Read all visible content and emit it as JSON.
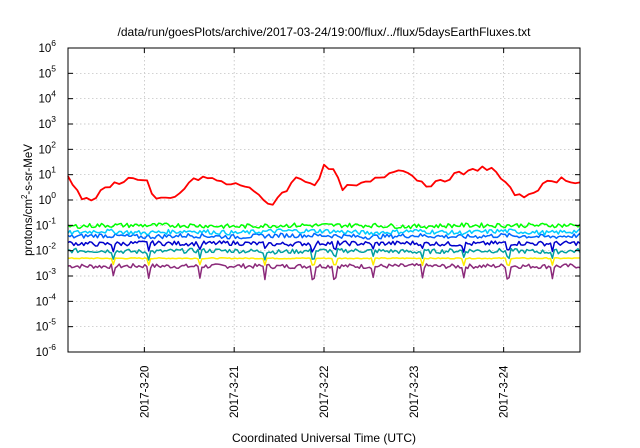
{
  "chart_data": {
    "type": "line",
    "title": "/data/run/goesPlots/archive/2017-03-24/19:00/flux/../flux/5daysEarthFluxes.txt",
    "xlabel": "Coordinated Universal Time (UTC)",
    "ylabel": {
      "prefix": "protons/cm",
      "sup": "2",
      "suffix": "-s-sr-MeV"
    },
    "yscale": "log",
    "ylim_exp": [
      -6,
      6
    ],
    "yticks": [
      {
        "base": "10",
        "exp": "6"
      },
      {
        "base": "10",
        "exp": "5"
      },
      {
        "base": "10",
        "exp": "4"
      },
      {
        "base": "10",
        "exp": "3"
      },
      {
        "base": "10",
        "exp": "2"
      },
      {
        "base": "10",
        "exp": "1"
      },
      {
        "base": "10",
        "exp": "0"
      },
      {
        "base": "10",
        "exp": "-1"
      },
      {
        "base": "10",
        "exp": "-2"
      },
      {
        "base": "10",
        "exp": "-3"
      },
      {
        "base": "10",
        "exp": "-4"
      },
      {
        "base": "10",
        "exp": "-5"
      },
      {
        "base": "10",
        "exp": "-6"
      }
    ],
    "xlim_days": [
      19.15,
      24.85
    ],
    "xticks": [
      {
        "label": "2017-3-20",
        "day": 20
      },
      {
        "label": "2017-3-21",
        "day": 21
      },
      {
        "label": "2017-3-22",
        "day": 22
      },
      {
        "label": "2017-3-23",
        "day": 23
      },
      {
        "label": "2017-3-24",
        "day": 24
      }
    ],
    "grid": true,
    "series": [
      {
        "color": "#ff0000",
        "x": [
          19.15,
          19.3,
          19.4,
          19.55,
          19.7,
          19.85,
          19.95,
          20.05,
          20.1,
          20.2,
          20.35,
          20.5,
          20.65,
          20.8,
          20.95,
          21.1,
          21.2,
          21.3,
          21.4,
          21.5,
          21.6,
          21.7,
          21.8,
          21.9,
          22.0,
          22.1,
          22.2,
          22.35,
          22.5,
          22.7,
          22.85,
          23.0,
          23.15,
          23.3,
          23.45,
          23.6,
          23.75,
          23.9,
          24.05,
          24.2,
          24.35,
          24.5,
          24.65,
          24.85
        ],
        "y": [
          10,
          1.2,
          0.9,
          2.5,
          5,
          7,
          7.5,
          5,
          1.0,
          1.0,
          1.2,
          5,
          8,
          6,
          4,
          4,
          3,
          1.0,
          0.6,
          1.5,
          3,
          8,
          6,
          4,
          20,
          15,
          3,
          3.5,
          5,
          10,
          20,
          8,
          4,
          5,
          10,
          12,
          20,
          15,
          3,
          1.2,
          2.5,
          5,
          7,
          5
        ]
      },
      {
        "color": "#00ff00",
        "x": [
          19.15,
          19.5,
          20.0,
          20.5,
          21.0,
          21.5,
          22.0,
          22.5,
          23.0,
          23.5,
          24.0,
          24.5,
          24.85
        ],
        "y": [
          0.09,
          0.1,
          0.1,
          0.1,
          0.09,
          0.1,
          0.1,
          0.1,
          0.09,
          0.1,
          0.1,
          0.1,
          0.1
        ]
      },
      {
        "color": "#00ccff",
        "x": [
          19.15,
          19.5,
          20.0,
          20.5,
          21.0,
          21.5,
          22.0,
          22.5,
          23.0,
          23.5,
          24.0,
          24.5,
          24.85
        ],
        "y": [
          0.05,
          0.06,
          0.05,
          0.06,
          0.05,
          0.06,
          0.06,
          0.05,
          0.06,
          0.05,
          0.06,
          0.05,
          0.06
        ]
      },
      {
        "color": "#0066ff",
        "x": [
          19.15,
          19.5,
          20.0,
          20.5,
          21.0,
          21.5,
          22.0,
          22.5,
          23.0,
          23.5,
          24.0,
          24.5,
          24.85
        ],
        "y": [
          0.035,
          0.04,
          0.035,
          0.04,
          0.035,
          0.04,
          0.04,
          0.035,
          0.04,
          0.035,
          0.04,
          0.035,
          0.04
        ]
      },
      {
        "color": "#0000cc",
        "x": [
          19.15,
          19.5,
          20.0,
          20.5,
          21.0,
          21.5,
          22.0,
          22.5,
          23.0,
          23.5,
          24.0,
          24.5,
          24.85
        ],
        "y": [
          0.02,
          0.018,
          0.02,
          0.019,
          0.02,
          0.018,
          0.02,
          0.019,
          0.02,
          0.018,
          0.02,
          0.019,
          0.02
        ]
      },
      {
        "color": "#00a0a0",
        "x": [
          19.15,
          19.5,
          20.0,
          20.5,
          21.0,
          21.5,
          22.0,
          22.5,
          23.0,
          23.5,
          24.0,
          24.5,
          24.85
        ],
        "y": [
          0.01,
          0.01,
          0.009,
          0.01,
          0.01,
          0.009,
          0.01,
          0.01,
          0.009,
          0.01,
          0.01,
          0.009,
          0.01
        ]
      },
      {
        "color": "#ffee00",
        "x": [
          19.15,
          19.5,
          20.0,
          20.5,
          21.0,
          21.5,
          22.0,
          22.5,
          23.0,
          23.5,
          24.0,
          24.5,
          24.85
        ],
        "y": [
          0.005,
          0.005,
          0.005,
          0.005,
          0.005,
          0.005,
          0.005,
          0.005,
          0.005,
          0.005,
          0.005,
          0.005,
          0.005
        ]
      },
      {
        "color": "#8b2a7a",
        "x": [
          19.15,
          19.5,
          20.0,
          20.5,
          21.0,
          21.5,
          22.0,
          22.5,
          23.0,
          23.5,
          24.0,
          24.5,
          24.85
        ],
        "y": [
          0.0025,
          0.0024,
          0.0025,
          0.0024,
          0.0025,
          0.0024,
          0.0025,
          0.0024,
          0.0025,
          0.0024,
          0.0025,
          0.0024,
          0.0025
        ]
      }
    ]
  }
}
